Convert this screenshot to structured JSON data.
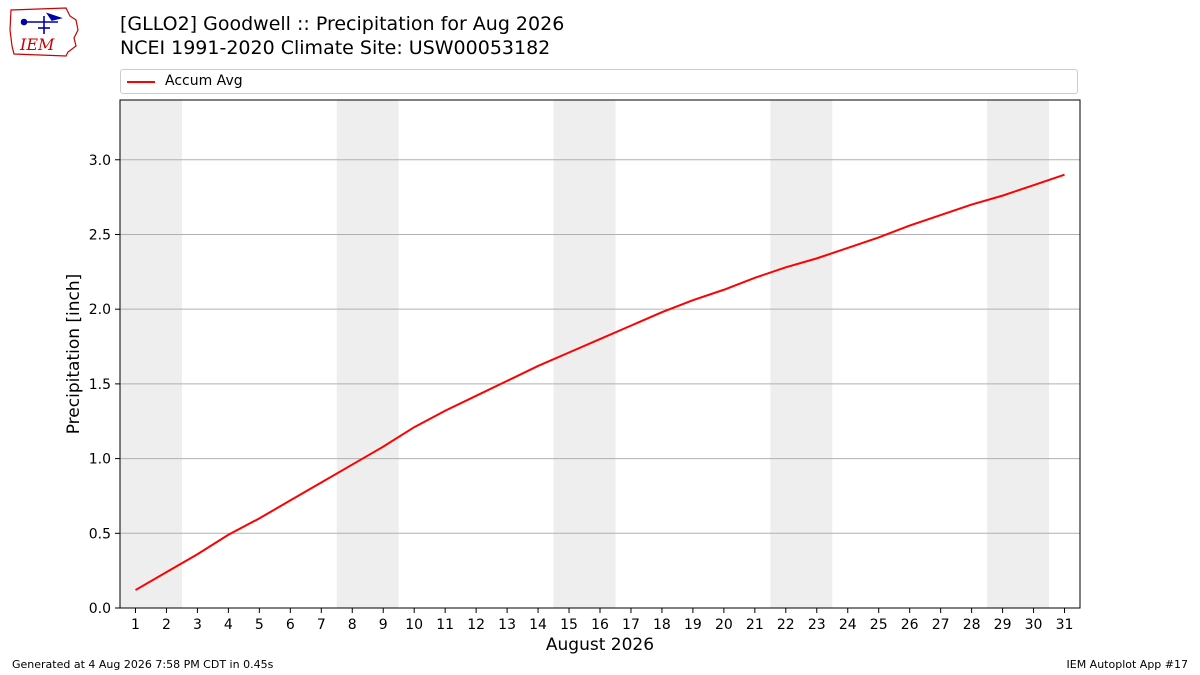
{
  "header": {
    "title_line1": "[GLLO2] Goodwell :: Precipitation for Aug 2026",
    "title_line2": "NCEI 1991-2020 Climate Site: USW00053182",
    "logo_text": "IEM"
  },
  "colors": {
    "line": "#ff0000",
    "weekend_band": "#eeeeee",
    "grid": "#b0b0b0",
    "logo": "#cc0000",
    "logo_icon": "#0000aa"
  },
  "chart_data": {
    "type": "line",
    "xlabel": "August 2026",
    "ylabel": "Precipitation [inch]",
    "x": [
      1,
      2,
      3,
      4,
      5,
      6,
      7,
      8,
      9,
      10,
      11,
      12,
      13,
      14,
      15,
      16,
      17,
      18,
      19,
      20,
      21,
      22,
      23,
      24,
      25,
      26,
      27,
      28,
      29,
      30,
      31
    ],
    "series": [
      {
        "name": "Accum Avg",
        "values": [
          0.12,
          0.24,
          0.36,
          0.49,
          0.6,
          0.72,
          0.84,
          0.96,
          1.08,
          1.21,
          1.32,
          1.42,
          1.52,
          1.62,
          1.71,
          1.8,
          1.89,
          1.98,
          2.06,
          2.13,
          2.21,
          2.28,
          2.34,
          2.41,
          2.48,
          2.56,
          2.63,
          2.7,
          2.76,
          2.83,
          2.9
        ]
      }
    ],
    "xlim": [
      0.5,
      31.5
    ],
    "ylim": [
      0.0,
      3.4
    ],
    "yticks": [
      0.0,
      0.5,
      1.0,
      1.5,
      2.0,
      2.5,
      3.0
    ],
    "ytick_labels": [
      "0.0",
      "0.5",
      "1.0",
      "1.5",
      "2.0",
      "2.5",
      "3.0"
    ],
    "xticks": [
      1,
      2,
      3,
      4,
      5,
      6,
      7,
      8,
      9,
      10,
      11,
      12,
      13,
      14,
      15,
      16,
      17,
      18,
      19,
      20,
      21,
      22,
      23,
      24,
      25,
      26,
      27,
      28,
      29,
      30,
      31
    ],
    "xtick_labels": [
      "1",
      "2",
      "3",
      "4",
      "5",
      "6",
      "7",
      "8",
      "9",
      "10",
      "11",
      "12",
      "13",
      "14",
      "15",
      "16",
      "17",
      "18",
      "19",
      "20",
      "21",
      "22",
      "23",
      "24",
      "25",
      "26",
      "27",
      "28",
      "29",
      "30",
      "31"
    ],
    "weekend_bands": [
      [
        1,
        2
      ],
      [
        8,
        9
      ],
      [
        15,
        16
      ],
      [
        22,
        23
      ],
      [
        29,
        30
      ]
    ],
    "grid": "horizontal",
    "legend_position": "top"
  },
  "footer": {
    "generated": "Generated at 4 Aug 2026 7:58 PM CDT in 0.45s",
    "app": "IEM Autoplot App #17"
  }
}
